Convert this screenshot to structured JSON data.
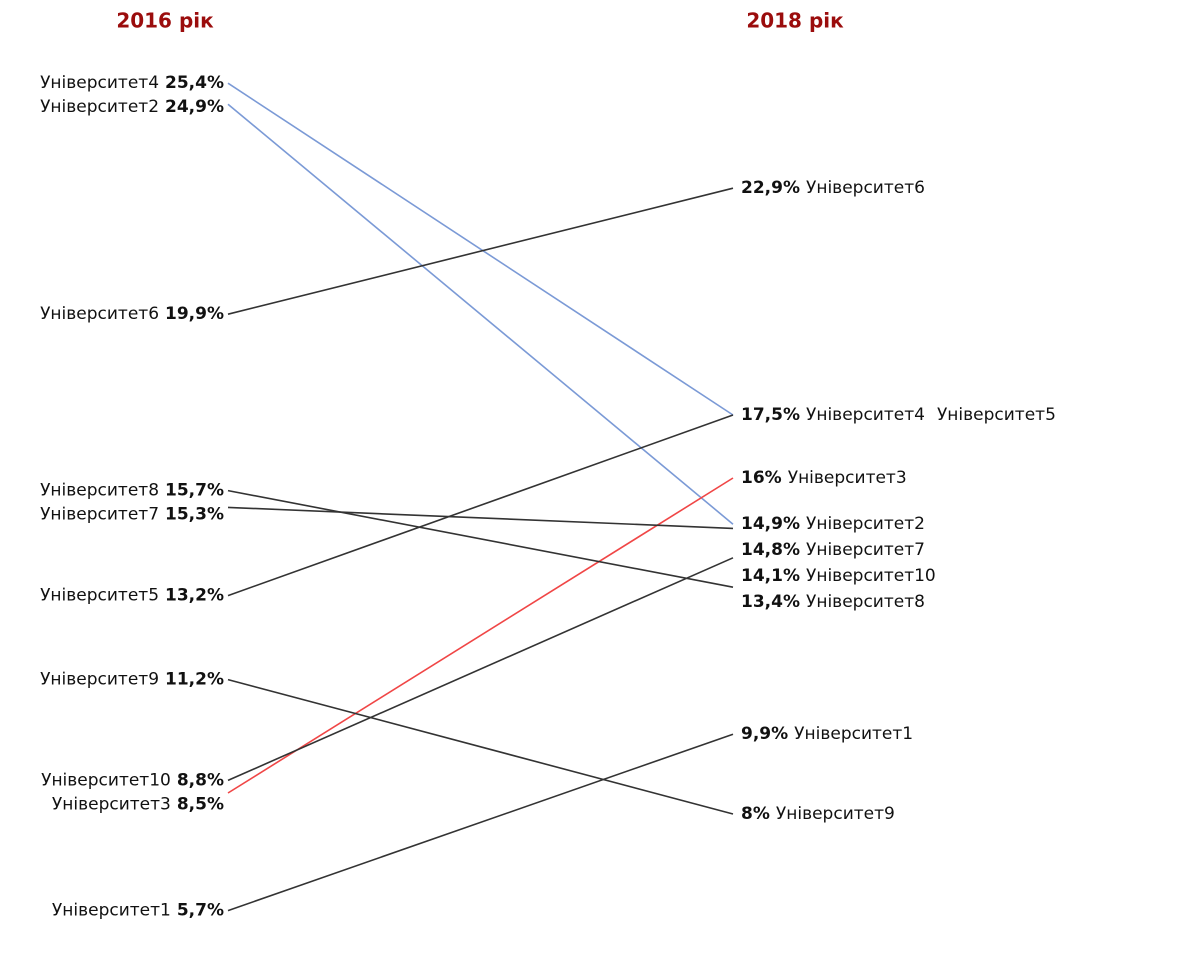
{
  "chart_data": {
    "type": "slope",
    "categories": [
      "2016 рік",
      "2018 рік"
    ],
    "ylim": [
      5,
      26
    ],
    "series": [
      {
        "name": "Університет1",
        "color": "#333333",
        "values": [
          5.7,
          9.9
        ],
        "value_labels": [
          "5,7%",
          "9,9%"
        ]
      },
      {
        "name": "Університет2",
        "color": "#7b9ad6",
        "values": [
          24.9,
          14.9
        ],
        "value_labels": [
          "24,9%",
          "14,9%"
        ]
      },
      {
        "name": "Університет3",
        "color": "#f04646",
        "values": [
          8.5,
          16
        ],
        "value_labels": [
          "8,5%",
          "16%"
        ]
      },
      {
        "name": "Університет4",
        "color": "#7b9ad6",
        "values": [
          25.4,
          17.5
        ],
        "value_labels": [
          "25,4%",
          "17,5%"
        ]
      },
      {
        "name": "Університет5",
        "color": "#333333",
        "values": [
          13.2,
          17.5
        ],
        "value_labels": [
          "13,2%",
          "17,5%"
        ]
      },
      {
        "name": "Університет6",
        "color": "#333333",
        "values": [
          19.9,
          22.9
        ],
        "value_labels": [
          "19,9%",
          "22,9%"
        ]
      },
      {
        "name": "Університет7",
        "color": "#333333",
        "values": [
          15.3,
          14.8
        ],
        "value_labels": [
          "15,3%",
          "14,8%"
        ]
      },
      {
        "name": "Університет8",
        "color": "#333333",
        "values": [
          15.7,
          13.4
        ],
        "value_labels": [
          "15,7%",
          "13,4%"
        ]
      },
      {
        "name": "Університет9",
        "color": "#333333",
        "values": [
          11.2,
          8
        ],
        "value_labels": [
          "11,2%",
          "8%"
        ]
      },
      {
        "name": "Університет10",
        "color": "#333333",
        "values": [
          8.8,
          14.1
        ],
        "value_labels": [
          "8,8%",
          "14,1%"
        ]
      }
    ]
  }
}
